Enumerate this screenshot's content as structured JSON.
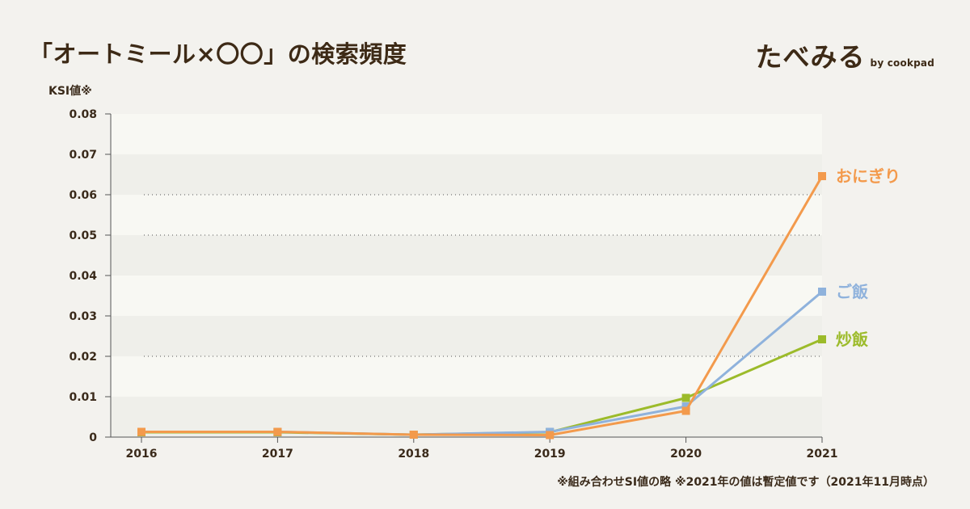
{
  "header": {
    "title": "「オートミール×〇〇」の検索頻度",
    "brand_name": "たべみる",
    "brand_by": "by cookpad"
  },
  "footnote": "※組み合わせSI値の略 ※2021年の値は暫定値です（2021年11月時点）",
  "colors": {
    "onigiri": "#f39a4c",
    "gohan": "#8fb2dc",
    "chahan": "#9cbb2a",
    "axis": "#555555",
    "band_light": "#f8f8f3",
    "band_dark": "#efefea"
  },
  "chart_data": {
    "type": "line",
    "title": "「オートミール×〇〇」の検索頻度",
    "ylabel": "KSI値※",
    "xlabel": "",
    "x": [
      "2016",
      "2017",
      "2018",
      "2019",
      "2020",
      "2021"
    ],
    "ylim": [
      0,
      0.08
    ],
    "yticks": [
      "0",
      "0.01",
      "0.02",
      "0.03",
      "0.04",
      "0.05",
      "0.06",
      "0.07",
      "0.08"
    ],
    "grid": true,
    "legend": "inline-right",
    "series": [
      {
        "name": "炒飯",
        "color": "#9cbb2a",
        "values": [
          0.0012,
          0.0012,
          0.0006,
          0.0012,
          0.0097,
          0.0242
        ]
      },
      {
        "name": "ご飯",
        "color": "#8fb2dc",
        "values": [
          0.0013,
          0.0013,
          0.0006,
          0.0013,
          0.0076,
          0.036
        ]
      },
      {
        "name": "おにぎり",
        "color": "#f39a4c",
        "values": [
          0.0013,
          0.0013,
          0.0006,
          0.0005,
          0.0065,
          0.0646
        ]
      }
    ]
  }
}
